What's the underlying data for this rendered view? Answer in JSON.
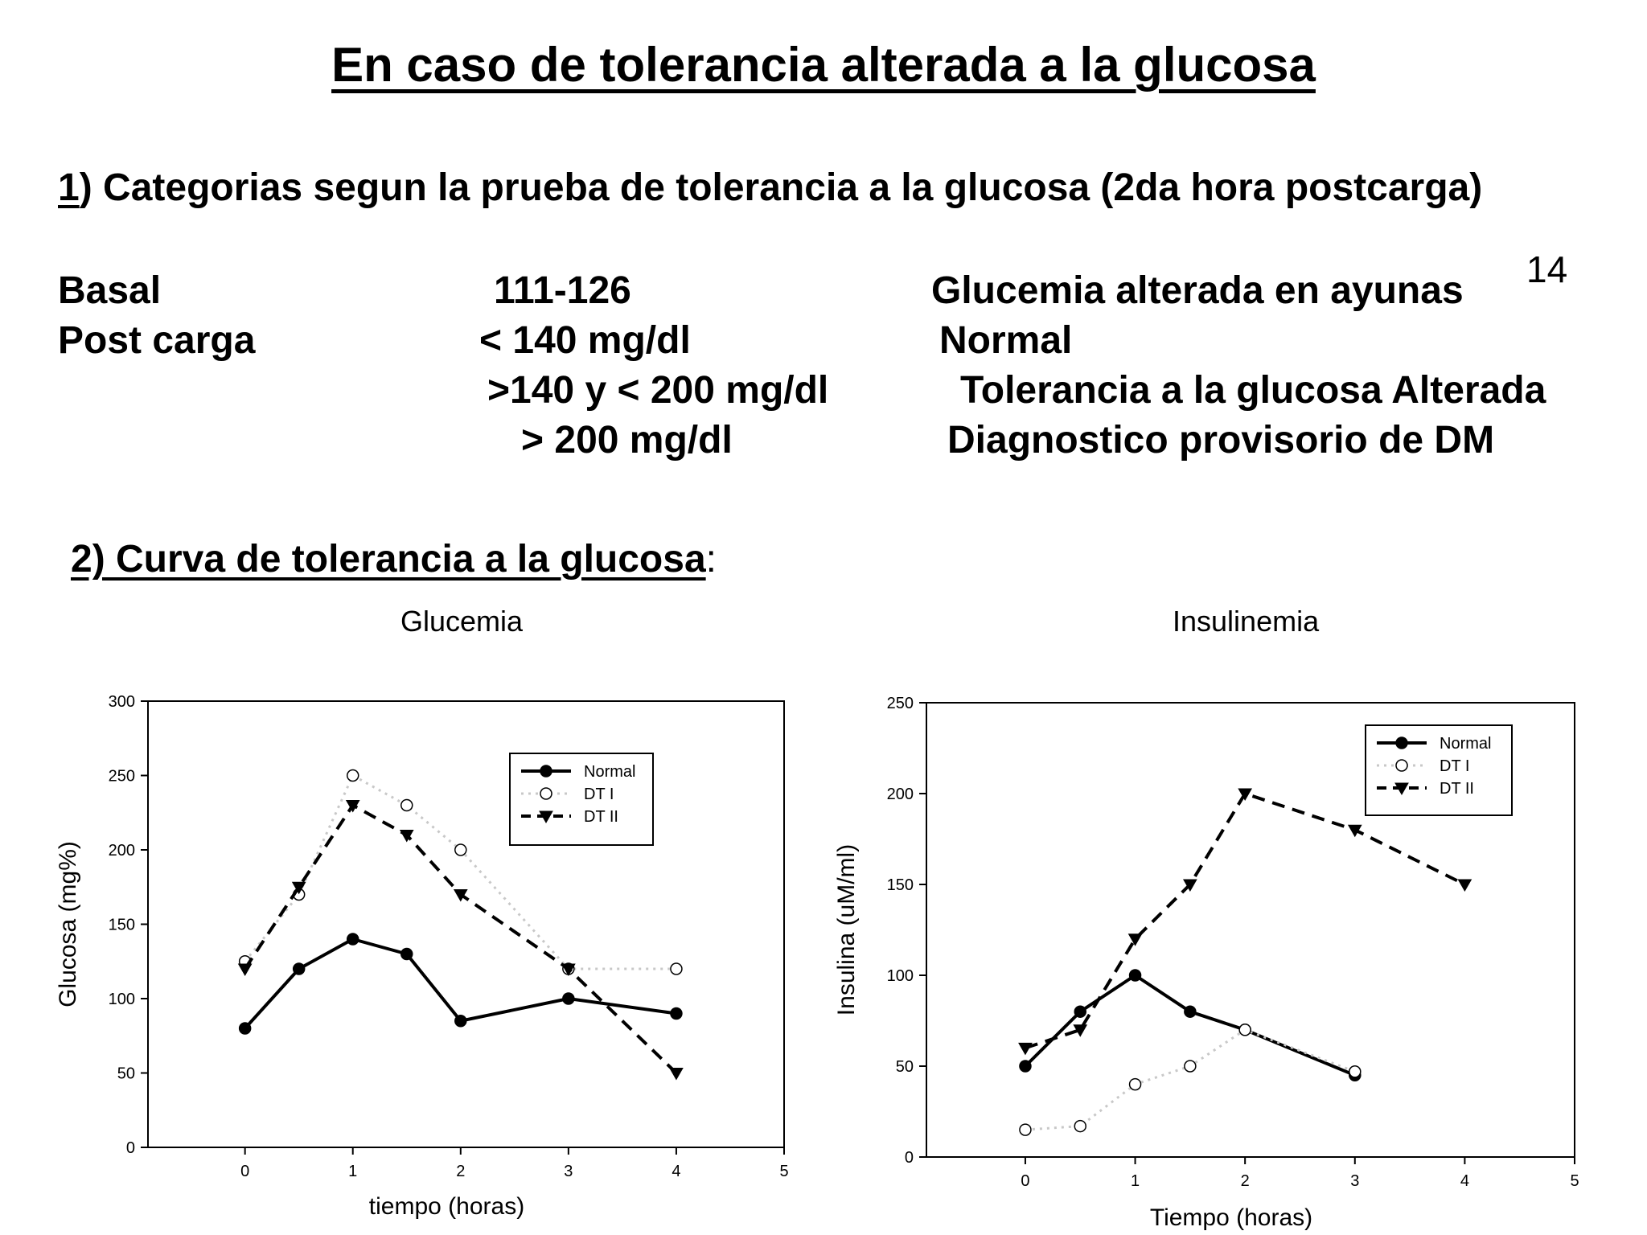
{
  "title": "En caso de tolerancia alterada a la glucosa",
  "page_number": "14",
  "section1": {
    "number": "1",
    "heading": ") Categorias segun la prueba de tolerancia a la glucosa (2da hora postcarga)",
    "rows": [
      {
        "label": "Basal",
        "value": "111-126",
        "result": "Glucemia alterada en ayunas"
      },
      {
        "label": "Post carga",
        "value": "< 140 mg/dl",
        "result": "Normal"
      },
      {
        "label": "",
        "value": ">140 y < 200 mg/dl",
        "result": "Tolerancia a la glucosa Alterada"
      },
      {
        "label": "",
        "value": "> 200 mg/dl",
        "result": "Diagnostico provisorio de DM"
      }
    ]
  },
  "section2": {
    "heading": "2) Curva de tolerancia a la glucosa",
    "colon": ":"
  },
  "chart_data": [
    {
      "type": "line",
      "title": "Glucemia",
      "xlabel": "tiempo (horas)",
      "ylabel": "Glucosa (mg%)",
      "xlim": [
        -0.9,
        5
      ],
      "ylim": [
        0,
        300
      ],
      "xticks": [
        0,
        1,
        2,
        3,
        4,
        5
      ],
      "yticks": [
        0,
        50,
        100,
        150,
        200,
        250,
        300
      ],
      "legend": "top-right",
      "grid": false,
      "series": [
        {
          "name": "Normal",
          "style": "solid",
          "marker": "filled-circle",
          "color": "#000000",
          "points": [
            [
              0,
              80
            ],
            [
              0.5,
              120
            ],
            [
              1,
              140
            ],
            [
              1.5,
              130
            ],
            [
              2,
              85
            ],
            [
              3,
              100
            ],
            [
              4,
              90
            ]
          ]
        },
        {
          "name": "DT I",
          "style": "dotted",
          "marker": "open-circle",
          "color": "#c8c8c8",
          "points": [
            [
              0,
              125
            ],
            [
              0.5,
              170
            ],
            [
              1,
              250
            ],
            [
              1.5,
              230
            ],
            [
              2,
              200
            ],
            [
              3,
              120
            ],
            [
              4,
              120
            ]
          ]
        },
        {
          "name": "DT II",
          "style": "dashed",
          "marker": "filled-triangle-down",
          "color": "#000000",
          "points": [
            [
              0,
              120
            ],
            [
              0.5,
              175
            ],
            [
              1,
              230
            ],
            [
              1.5,
              210
            ],
            [
              2,
              170
            ],
            [
              3,
              120
            ],
            [
              4,
              50
            ]
          ]
        }
      ]
    },
    {
      "type": "line",
      "title": "Insulinemia",
      "xlabel": "Tiempo (horas)",
      "ylabel": "Insulina (uM/ml)",
      "xlim": [
        -0.9,
        5
      ],
      "ylim": [
        0,
        250
      ],
      "xticks": [
        0,
        1,
        2,
        3,
        4,
        5
      ],
      "yticks": [
        0,
        50,
        100,
        150,
        200,
        250
      ],
      "legend": "top-right",
      "grid": false,
      "series": [
        {
          "name": "Normal",
          "style": "solid",
          "marker": "filled-circle",
          "color": "#000000",
          "points": [
            [
              0,
              50
            ],
            [
              0.5,
              80
            ],
            [
              1,
              100
            ],
            [
              1.5,
              80
            ],
            [
              2,
              70
            ],
            [
              3,
              45
            ]
          ]
        },
        {
          "name": "DT I",
          "style": "dotted",
          "marker": "open-circle",
          "color": "#c8c8c8",
          "points": [
            [
              0,
              15
            ],
            [
              0.5,
              17
            ],
            [
              1,
              40
            ],
            [
              1.5,
              50
            ],
            [
              2,
              70
            ],
            [
              3,
              47
            ]
          ]
        },
        {
          "name": "DT II",
          "style": "dashed",
          "marker": "filled-triangle-down",
          "color": "#000000",
          "points": [
            [
              0,
              60
            ],
            [
              0.5,
              70
            ],
            [
              1,
              120
            ],
            [
              1.5,
              150
            ],
            [
              2,
              200
            ],
            [
              3,
              180
            ],
            [
              4,
              150
            ]
          ]
        }
      ]
    }
  ]
}
